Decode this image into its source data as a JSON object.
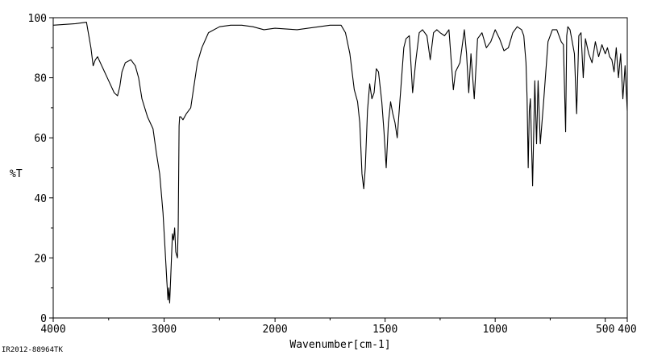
{
  "chart_data": {
    "type": "line",
    "xlabel": "Wavenumber[cm-1]",
    "ylabel": "%T",
    "xlim": [
      4000,
      400
    ],
    "ylim": [
      0,
      100
    ],
    "x_ticks": [
      4000,
      3000,
      2000,
      1500,
      1000,
      500,
      400
    ],
    "x_tick_labels": [
      "4000",
      "3000",
      "2000",
      "1500",
      "1000",
      "500",
      "400"
    ],
    "y_ticks": [
      0,
      20,
      40,
      60,
      80,
      100
    ],
    "y_tick_labels": [
      "0",
      "20",
      "40",
      "60",
      "80",
      "100"
    ],
    "grid": false,
    "footer_id": "IR2012-88964TK",
    "series": [
      {
        "color": "#000000",
        "x": [
          4000,
          3800,
          3700,
          3660,
          3640,
          3620,
          3600,
          3550,
          3500,
          3450,
          3420,
          3400,
          3380,
          3350,
          3300,
          3260,
          3230,
          3200,
          3150,
          3100,
          3070,
          3040,
          3010,
          2990,
          2975,
          2965,
          2958,
          2950,
          2940,
          2925,
          2915,
          2905,
          2895,
          2880,
          2873,
          2865,
          2860,
          2850,
          2830,
          2800,
          2760,
          2740,
          2700,
          2660,
          2600,
          2500,
          2400,
          2300,
          2200,
          2100,
          2000,
          1900,
          1800,
          1750,
          1700,
          1680,
          1660,
          1640,
          1625,
          1615,
          1605,
          1597,
          1590,
          1580,
          1570,
          1560,
          1550,
          1540,
          1530,
          1515,
          1505,
          1495,
          1485,
          1475,
          1465,
          1455,
          1445,
          1435,
          1425,
          1415,
          1405,
          1390,
          1375,
          1360,
          1345,
          1330,
          1310,
          1295,
          1280,
          1265,
          1250,
          1230,
          1210,
          1200,
          1190,
          1180,
          1160,
          1140,
          1130,
          1120,
          1110,
          1095,
          1080,
          1060,
          1040,
          1020,
          1000,
          980,
          960,
          940,
          920,
          900,
          880,
          870,
          860,
          855,
          850,
          845,
          840,
          830,
          820,
          812,
          805,
          795,
          780,
          760,
          740,
          720,
          700,
          690,
          680,
          675,
          670,
          660,
          640,
          630,
          620,
          610,
          600,
          590,
          575,
          560,
          545,
          530,
          515,
          500,
          490,
          480,
          470,
          460,
          450,
          440,
          430,
          420,
          410,
          400
        ],
        "values": [
          97.5,
          98,
          98.5,
          90,
          84,
          86,
          87,
          83,
          79,
          75,
          74,
          77,
          82,
          85,
          86,
          84,
          80,
          73,
          67,
          63,
          55,
          48,
          35,
          22,
          12,
          6,
          10,
          5,
          14,
          28,
          26,
          30,
          22,
          20,
          30,
          64,
          67,
          67,
          66,
          68,
          70,
          75,
          85,
          90,
          95,
          97,
          97.5,
          97.5,
          97,
          96,
          96.5,
          96,
          97,
          97.5,
          97.5,
          95,
          88,
          76,
          72,
          65,
          48,
          43,
          50,
          69,
          78,
          73,
          75,
          83,
          82,
          72,
          62,
          50,
          65,
          72,
          68,
          65,
          60,
          70,
          80,
          90,
          93,
          94,
          75,
          86,
          95,
          96,
          94,
          86,
          95,
          96,
          95,
          94,
          96,
          86,
          76,
          82,
          85,
          96,
          88,
          75,
          88,
          73,
          93,
          95,
          90,
          92,
          96,
          93,
          89,
          90,
          95,
          97,
          96,
          94,
          85,
          73,
          50,
          69,
          73,
          44,
          79,
          58,
          79,
          58,
          72,
          92,
          96,
          96,
          92,
          91,
          62,
          94,
          97,
          96,
          88,
          68,
          94,
          95,
          80,
          93,
          88,
          85,
          92,
          87,
          91,
          88,
          90,
          87,
          86,
          82,
          90,
          80,
          88,
          73,
          84,
          69
        ]
      }
    ]
  }
}
